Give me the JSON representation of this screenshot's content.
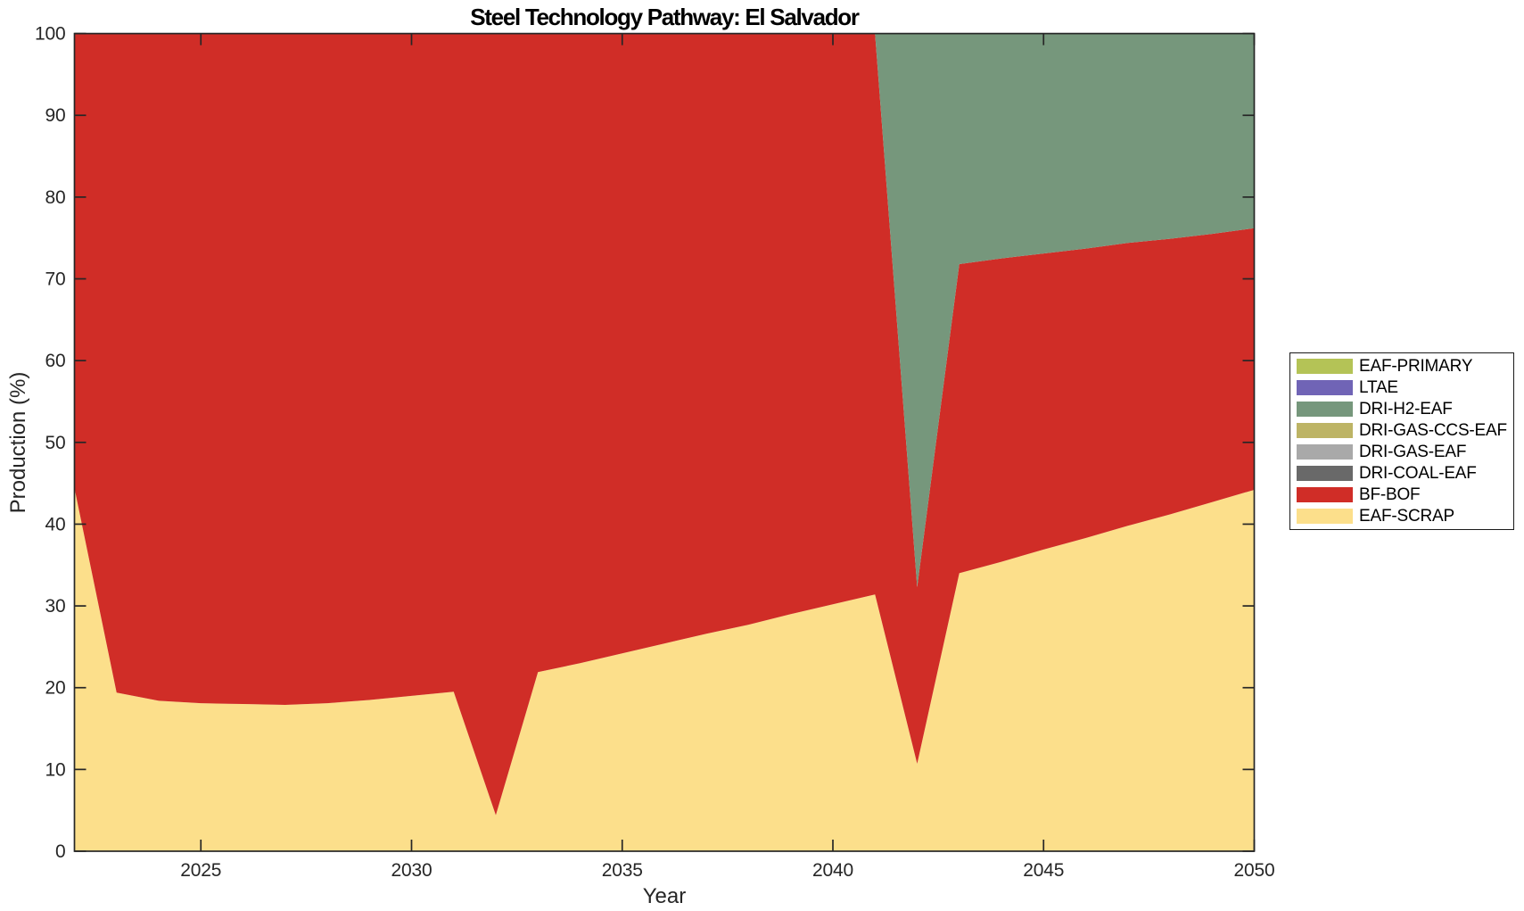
{
  "chart_data": {
    "type": "area",
    "stacked": true,
    "title": "Steel Technology Pathway: El Salvador",
    "xlabel": "Year",
    "ylabel": "Production (%)",
    "xlim": [
      2022,
      2050
    ],
    "ylim": [
      0,
      100
    ],
    "x_ticks": [
      2025,
      2030,
      2035,
      2040,
      2045,
      2050
    ],
    "y_ticks": [
      0,
      10,
      20,
      30,
      40,
      50,
      60,
      70,
      80,
      90,
      100
    ],
    "grid": false,
    "legend_position": "right-outside",
    "axis_color": "#262626",
    "x": [
      2022,
      2023,
      2024,
      2025,
      2026,
      2027,
      2028,
      2029,
      2030,
      2031,
      2032,
      2033,
      2034,
      2035,
      2036,
      2037,
      2038,
      2039,
      2040,
      2041,
      2042,
      2043,
      2044,
      2045,
      2046,
      2047,
      2048,
      2049,
      2050
    ],
    "series": [
      {
        "name": "EAF-SCRAP",
        "color": "#fcdf8b",
        "values": [
          44.4,
          19.4,
          18.4,
          18.1,
          18.0,
          17.9,
          18.1,
          18.5,
          19.0,
          19.5,
          4.4,
          21.9,
          23.0,
          24.2,
          25.4,
          26.6,
          27.7,
          29.0,
          30.2,
          31.4,
          10.7,
          34.0,
          35.4,
          36.9,
          38.3,
          39.8,
          41.2,
          42.7,
          44.2
        ]
      },
      {
        "name": "BF-BOF",
        "color": "#d02d27",
        "values": [
          55.6,
          80.6,
          81.6,
          81.9,
          82.0,
          82.1,
          81.9,
          81.5,
          81.0,
          80.5,
          95.6,
          78.1,
          77.0,
          75.8,
          74.6,
          73.4,
          72.3,
          71.0,
          69.8,
          68.6,
          21.6,
          37.8,
          37.1,
          36.2,
          35.4,
          34.6,
          33.7,
          32.8,
          32.0
        ]
      },
      {
        "name": "DRI-COAL-EAF",
        "color": "#696969",
        "values": [
          0,
          0,
          0,
          0,
          0,
          0,
          0,
          0,
          0,
          0,
          0,
          0,
          0,
          0,
          0,
          0,
          0,
          0,
          0,
          0,
          0,
          0,
          0,
          0,
          0,
          0,
          0,
          0,
          0
        ]
      },
      {
        "name": "DRI-GAS-EAF",
        "color": "#a9a9a9",
        "values": [
          0,
          0,
          0,
          0,
          0,
          0,
          0,
          0,
          0,
          0,
          0,
          0,
          0,
          0,
          0,
          0,
          0,
          0,
          0,
          0,
          0,
          0,
          0,
          0,
          0,
          0,
          0,
          0,
          0
        ]
      },
      {
        "name": "DRI-GAS-CCS-EAF",
        "color": "#bdb465",
        "values": [
          0,
          0,
          0,
          0,
          0,
          0,
          0,
          0,
          0,
          0,
          0,
          0,
          0,
          0,
          0,
          0,
          0,
          0,
          0,
          0,
          0,
          0,
          0,
          0,
          0,
          0,
          0,
          0,
          0
        ]
      },
      {
        "name": "DRI-H2-EAF",
        "color": "#76977c",
        "values": [
          0,
          0,
          0,
          0,
          0,
          0,
          0,
          0,
          0,
          0,
          0,
          0,
          0,
          0,
          0,
          0,
          0,
          0,
          0,
          0,
          67.7,
          28.2,
          27.5,
          26.9,
          26.3,
          25.6,
          25.1,
          24.5,
          23.8
        ]
      },
      {
        "name": "LTAE",
        "color": "#7064b6",
        "values": [
          0,
          0,
          0,
          0,
          0,
          0,
          0,
          0,
          0,
          0,
          0,
          0,
          0,
          0,
          0,
          0,
          0,
          0,
          0,
          0,
          0,
          0,
          0,
          0,
          0,
          0,
          0,
          0,
          0
        ]
      },
      {
        "name": "EAF-PRIMARY",
        "color": "#b4c356",
        "values": [
          0,
          0,
          0,
          0,
          0,
          0,
          0,
          0,
          0,
          0,
          0,
          0,
          0,
          0,
          0,
          0,
          0,
          0,
          0,
          0,
          0,
          0,
          0,
          0,
          0,
          0,
          0,
          0,
          0
        ]
      }
    ]
  }
}
